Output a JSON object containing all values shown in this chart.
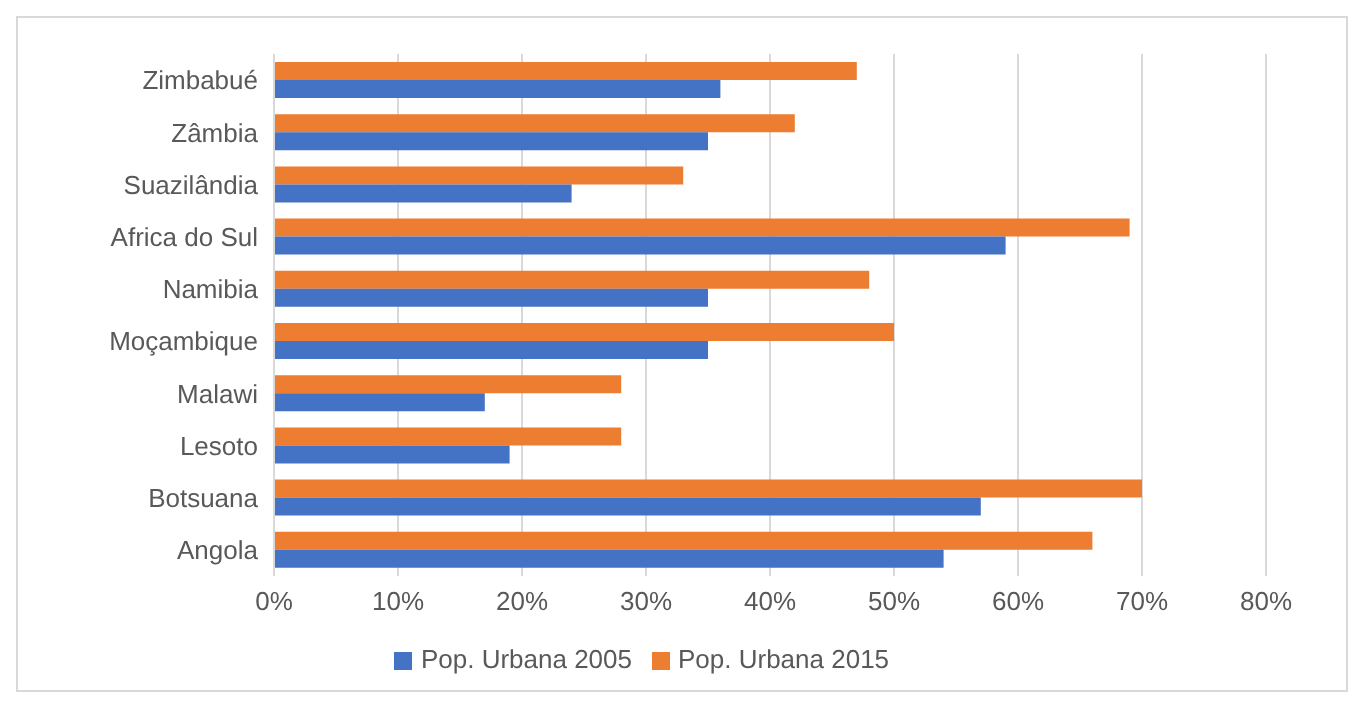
{
  "chart_data": {
    "type": "bar",
    "orientation": "horizontal",
    "categories": [
      "Zimbabué",
      "Zâmbia",
      "Suazilândia",
      "Africa do Sul",
      "Namibia",
      "Moçambique",
      "Malawi",
      "Lesoto",
      "Botsuana",
      "Angola"
    ],
    "series": [
      {
        "name": "Pop. Urbana 2015",
        "color": "#ed7d31",
        "values": [
          47,
          42,
          33,
          69,
          48,
          50,
          28,
          28,
          70,
          66
        ]
      },
      {
        "name": "Pop. Urbana 2005",
        "color": "#4472c4",
        "values": [
          36,
          35,
          24,
          59,
          35,
          35,
          17,
          19,
          57,
          54
        ]
      }
    ],
    "xlim": [
      0,
      80
    ],
    "xticks": [
      {
        "value": 0,
        "label": "0%"
      },
      {
        "value": 10,
        "label": "10%"
      },
      {
        "value": 20,
        "label": "20%"
      },
      {
        "value": 30,
        "label": "30%"
      },
      {
        "value": 40,
        "label": "40%"
      },
      {
        "value": 50,
        "label": "50%"
      },
      {
        "value": 60,
        "label": "60%"
      },
      {
        "value": 70,
        "label": "70%"
      },
      {
        "value": 80,
        "label": "80%"
      }
    ],
    "grid": "x",
    "legend": "bottom"
  }
}
